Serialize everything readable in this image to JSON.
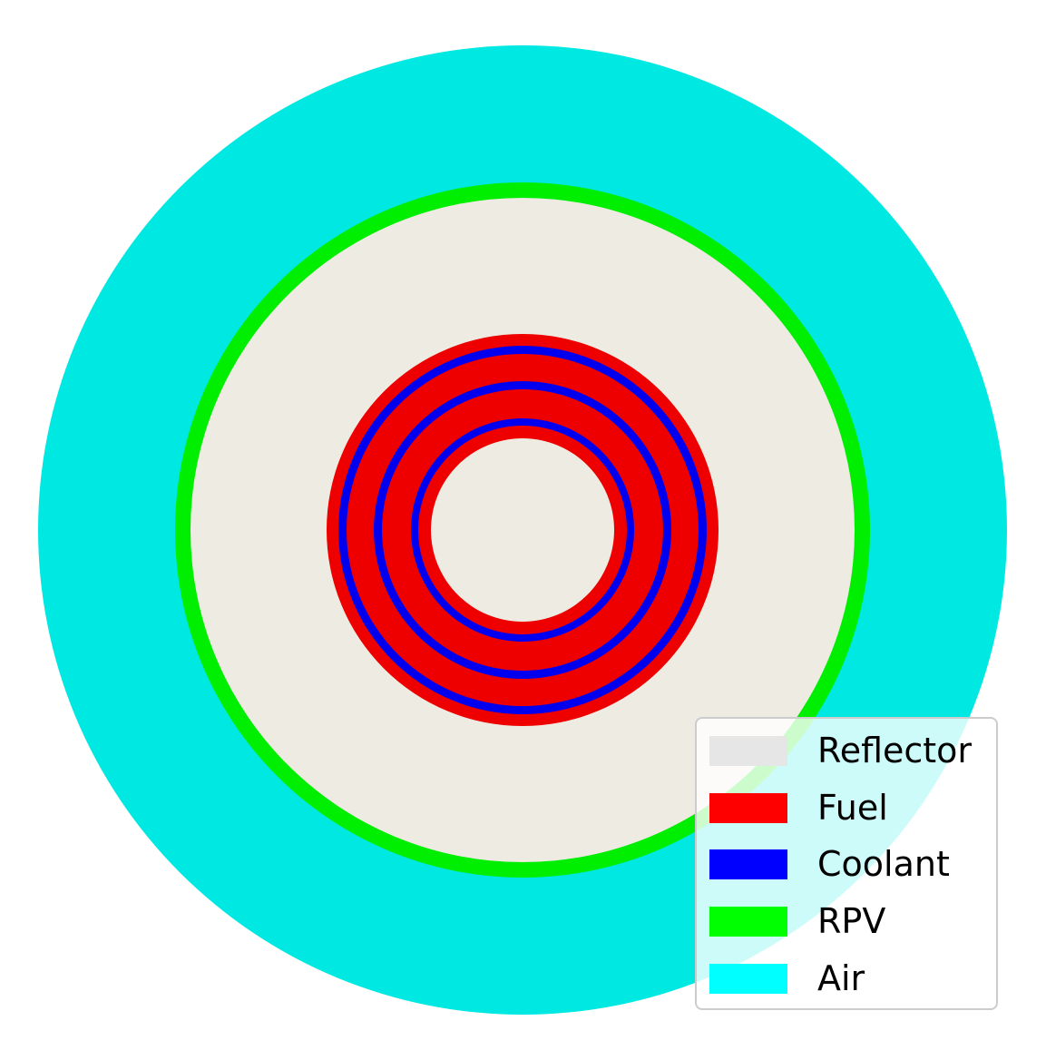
{
  "diagram": {
    "layers": [
      {
        "name": "Air",
        "color": "#00e8e2"
      },
      {
        "name": "RPV",
        "color": "#00ee00"
      },
      {
        "name": "Reflector",
        "color": "#edebe2"
      },
      {
        "name": "Fuel",
        "color": "#ee0000"
      },
      {
        "name": "Coolant",
        "color": "#0000ee"
      }
    ]
  },
  "legend": {
    "items": [
      {
        "label": "Reflector",
        "color": "#e6e6e6"
      },
      {
        "label": "Fuel",
        "color": "#ff0000"
      },
      {
        "label": "Coolant",
        "color": "#0000ff"
      },
      {
        "label": "RPV",
        "color": "#00ff00"
      },
      {
        "label": "Air",
        "color": "#00ffff"
      }
    ]
  }
}
